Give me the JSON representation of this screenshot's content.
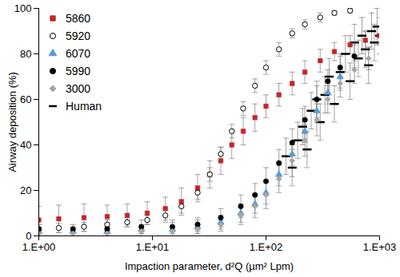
{
  "chart_data": {
    "type": "scatter",
    "xlabel": "Impaction parameter, d²Q (µm² Lpm)",
    "ylabel": "Airway deposition (%)",
    "log": "x",
    "xlim": [
      1,
      1000
    ],
    "xticks": [
      {
        "value": 1,
        "label": "1.E+00"
      },
      {
        "value": 10,
        "label": "1.E+01"
      },
      {
        "value": 100,
        "label": "1.E+02"
      },
      {
        "value": 1000,
        "label": "1.E+03"
      }
    ],
    "ylim": [
      0,
      100
    ],
    "yticks": [
      0,
      20,
      40,
      60,
      80,
      100
    ],
    "legend": "top-left",
    "series": [
      {
        "name": "5860",
        "color": "#c0262d",
        "marker": "square",
        "x": [
          1,
          1.5,
          2.5,
          4,
          6,
          9,
          13,
          18,
          25,
          32,
          40,
          50,
          63,
          80,
          100,
          130,
          170,
          220,
          300,
          400,
          550,
          750,
          1000
        ],
        "values": [
          7,
          7.5,
          8,
          8.5,
          9,
          10,
          12,
          15,
          21,
          27,
          33,
          40,
          46,
          52,
          57,
          62,
          67,
          72,
          77,
          81,
          84,
          86,
          88
        ],
        "errors": [
          6,
          6,
          6,
          5,
          5,
          5,
          5,
          6,
          6,
          6,
          6,
          6,
          6,
          6,
          5,
          5,
          5,
          5,
          5,
          4,
          4,
          4,
          4
        ]
      },
      {
        "name": "5920",
        "color": "#000000",
        "marker": "open_circle",
        "x": [
          1,
          1.5,
          2.5,
          4,
          6,
          9,
          13,
          18,
          25,
          32,
          40,
          50,
          63,
          80,
          100,
          130,
          170,
          220,
          300,
          400,
          550
        ],
        "values": [
          3,
          3.5,
          4,
          5,
          6,
          7,
          9,
          13,
          19,
          27,
          36,
          46,
          56,
          66,
          74,
          82,
          89,
          93,
          96,
          98,
          99
        ],
        "errors": [
          2,
          2,
          2,
          2,
          2,
          2,
          3,
          3,
          3,
          3,
          3,
          3,
          3,
          3,
          3,
          3,
          2,
          2,
          2,
          1,
          1
        ]
      },
      {
        "name": "6070",
        "color": "#5b9bd5",
        "marker": "triangle",
        "x": [
          1,
          2,
          4,
          8,
          15,
          25,
          40,
          60,
          80,
          100,
          130,
          170,
          220,
          280,
          350,
          450
        ],
        "values": [
          2,
          2,
          2,
          3,
          3,
          4,
          6,
          10,
          14,
          19,
          27,
          36,
          46,
          55,
          63,
          70
        ],
        "errors": [
          2,
          2,
          2,
          2,
          3,
          3,
          3,
          4,
          4,
          5,
          5,
          5,
          5,
          5,
          5,
          5
        ]
      },
      {
        "name": "5990",
        "color": "#000000",
        "marker": "circle",
        "x": [
          1,
          2,
          4,
          8,
          15,
          25,
          40,
          60,
          80,
          100,
          130,
          170,
          220,
          280,
          350,
          450,
          600
        ],
        "values": [
          3,
          3,
          3,
          4,
          4,
          5,
          8,
          13,
          18,
          24,
          32,
          41,
          51,
          60,
          68,
          74,
          79
        ],
        "errors": [
          2,
          2,
          2,
          3,
          3,
          3,
          4,
          5,
          5,
          6,
          6,
          6,
          6,
          6,
          5,
          5,
          5
        ]
      },
      {
        "name": "3000",
        "color": "#a6a6a6",
        "marker": "diamond",
        "x": [
          1,
          2,
          4,
          8,
          15,
          25,
          40,
          60,
          80,
          100,
          130,
          170,
          220,
          280,
          350,
          450,
          600,
          800
        ],
        "values": [
          1,
          1,
          1,
          2,
          2,
          3,
          5,
          9,
          13,
          18,
          25,
          33,
          42,
          51,
          60,
          67,
          73,
          78
        ],
        "errors": [
          1,
          1,
          1,
          2,
          2,
          2,
          3,
          4,
          5,
          6,
          6,
          7,
          7,
          7,
          6,
          6,
          6,
          5
        ]
      },
      {
        "name": "Human",
        "color": "#000000",
        "marker": "dash",
        "x": [
          150,
          170,
          190,
          210,
          230,
          250,
          280,
          300,
          330,
          360,
          400,
          450,
          500,
          550,
          600,
          650,
          700,
          750,
          800,
          850,
          900,
          950,
          1000
        ],
        "values": [
          35,
          30,
          42,
          48,
          38,
          55,
          60,
          50,
          62,
          70,
          58,
          72,
          80,
          68,
          85,
          78,
          88,
          82,
          75,
          90,
          85,
          92,
          88
        ],
        "errors": [
          8,
          8,
          8,
          8,
          8,
          8,
          8,
          8,
          8,
          8,
          8,
          8,
          8,
          8,
          8,
          8,
          8,
          8,
          8,
          8,
          8,
          8,
          8
        ]
      }
    ]
  }
}
